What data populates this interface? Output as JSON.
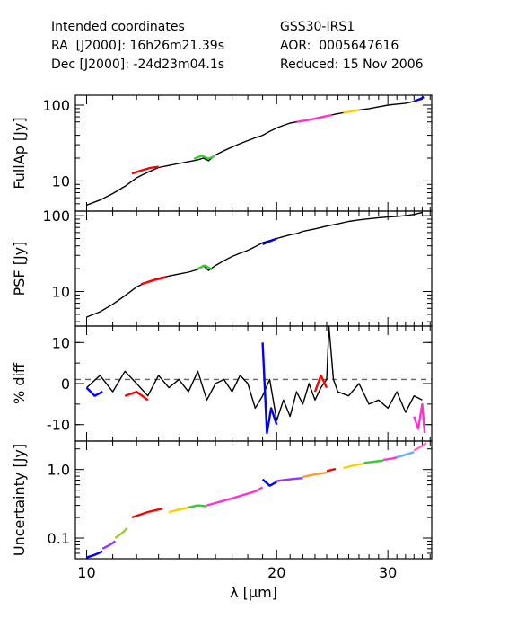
{
  "header": {
    "left": [
      "Intended coordinates",
      "RA  [J2000]: 16h26m21.39s",
      "Dec [J2000]: -24d23m04.1s"
    ],
    "right": [
      "GSS30-IRS1",
      "AOR:  0005647616",
      "Reduced: 15 Nov 2006"
    ]
  },
  "chart_data": [
    {
      "type": "line",
      "panel": "FullAp",
      "ylabel": "FullAp [Jy]",
      "yscale": "log",
      "ylim": [
        4,
        135
      ],
      "yticks": [
        10,
        100
      ],
      "ytick_labels": [
        "10",
        "100"
      ],
      "series": [
        {
          "color": "#000000",
          "x": [
            10,
            10.5,
            11,
            11.5,
            12,
            12.5,
            13,
            13.5,
            14,
            14.5,
            15,
            15.3,
            15.6,
            16,
            16.5,
            17,
            17.5,
            18,
            18.5,
            19,
            19.5,
            20,
            20.5,
            21,
            21.5,
            22,
            22.5,
            23,
            23.5,
            24,
            25,
            26,
            27,
            28,
            29,
            30,
            31,
            32,
            33,
            34
          ],
          "y": [
            4.8,
            5.6,
            6.8,
            8.5,
            11,
            13,
            15,
            16,
            17,
            18,
            19,
            20,
            18.5,
            22,
            25,
            28,
            31,
            34,
            37,
            40,
            45,
            50,
            54,
            58,
            60,
            62,
            64,
            66,
            68,
            72,
            77,
            82,
            86,
            90,
            95,
            100,
            103,
            106,
            112,
            120
          ]
        },
        {
          "color": "#ff0000",
          "x": [
            11.8,
            12.2,
            12.6,
            13.0
          ],
          "y": [
            12.5,
            13.7,
            14.8,
            15.4
          ]
        },
        {
          "color": "#33cc33",
          "x": [
            14.8,
            15.2,
            15.6,
            16.0
          ],
          "y": [
            19.5,
            21.5,
            19.6,
            21.5
          ]
        },
        {
          "color": "#ff33cc",
          "x": [
            21.5,
            22.5,
            23.5,
            24.5
          ],
          "y": [
            60,
            64,
            69,
            74
          ]
        },
        {
          "color": "#ffcc00",
          "x": [
            25.5,
            26.5,
            27.0
          ],
          "y": [
            79,
            84,
            86
          ]
        },
        {
          "color": "#0000ff",
          "x": [
            33.0,
            33.8,
            34.2
          ],
          "y": [
            112,
            121,
            128
          ]
        }
      ]
    },
    {
      "type": "line",
      "panel": "PSF",
      "ylabel": "PSF [Jy]",
      "yscale": "log",
      "ylim": [
        3.5,
        115
      ],
      "yticks": [
        10,
        100
      ],
      "ytick_labels": [
        "10",
        "100"
      ],
      "series": [
        {
          "color": "#000000",
          "x": [
            10,
            10.5,
            11,
            11.5,
            12,
            12.5,
            13,
            13.5,
            14,
            14.5,
            15,
            15.3,
            15.6,
            16,
            16.5,
            17,
            17.5,
            18,
            18.5,
            19,
            19.5,
            20,
            20.5,
            21,
            21.5,
            22,
            23,
            24,
            25,
            26,
            27,
            28,
            29,
            30,
            31,
            32,
            33,
            34
          ],
          "y": [
            4.6,
            5.4,
            6.8,
            8.8,
            11.5,
            13.5,
            15,
            16,
            17,
            18,
            19.5,
            22,
            19,
            22,
            25.5,
            29,
            32,
            35,
            39,
            44,
            47,
            50,
            53,
            56,
            58,
            62,
            67,
            73,
            78,
            84,
            88,
            91,
            94,
            96,
            98,
            100,
            104,
            110
          ]
        },
        {
          "color": "#0000ff",
          "x": [
            19.0,
            19.5,
            20.0
          ],
          "y": [
            42,
            46,
            50
          ]
        },
        {
          "color": "#33cc33",
          "x": [
            15.0,
            15.4,
            15.8
          ],
          "y": [
            20,
            22,
            19.5
          ]
        },
        {
          "color": "#ff0000",
          "x": [
            12.2,
            12.8,
            13.4
          ],
          "y": [
            12.5,
            14.2,
            15.5
          ]
        }
      ]
    },
    {
      "type": "line",
      "panel": "% diff",
      "ylabel": "% diff",
      "yscale": "linear",
      "ylim": [
        -14,
        14
      ],
      "yticks": [
        -10,
        0,
        10
      ],
      "ytick_labels": [
        "-10",
        "0",
        "10"
      ],
      "reference_line": 1,
      "series": [
        {
          "color": "#000000",
          "x": [
            10,
            10.5,
            11,
            11.5,
            12,
            12.5,
            13,
            13.5,
            14,
            14.5,
            15,
            15.5,
            16,
            16.5,
            17,
            17.5,
            18,
            18.5,
            19,
            19.5,
            20,
            20.5,
            21,
            21.5,
            22,
            22.5,
            23,
            23.5,
            24,
            24.2,
            24.6,
            25,
            26,
            27,
            28,
            29,
            30,
            31,
            32,
            33,
            34
          ],
          "y": [
            -1,
            2,
            -2,
            3,
            0,
            -3,
            2,
            -1,
            1,
            -2,
            3,
            -4,
            0,
            1,
            -2,
            2,
            0,
            -6,
            -3,
            1,
            -9,
            -4,
            -8,
            -2,
            -5,
            0,
            -4,
            -1,
            1,
            14,
            1,
            -2,
            -3,
            0,
            -5,
            -4,
            -6,
            -2,
            -7,
            -3,
            -4
          ]
        },
        {
          "color": "#0000ff",
          "x": [
            10.0,
            10.3,
            10.6
          ],
          "y": [
            -1,
            -3,
            -2
          ]
        },
        {
          "color": "#ff0000",
          "x": [
            11.5,
            12.0,
            12.5
          ],
          "y": [
            -3,
            -2,
            -4
          ]
        },
        {
          "color": "#0000ff",
          "x": [
            19.0,
            19.3,
            19.6,
            20.0
          ],
          "y": [
            10,
            -12,
            -6,
            -10
          ]
        },
        {
          "color": "#ff0000",
          "x": [
            23.0,
            23.5,
            24.0
          ],
          "y": [
            -2,
            2,
            -1
          ]
        },
        {
          "color": "#ff33cc",
          "x": [
            33.0,
            33.5,
            34.0,
            34.3
          ],
          "y": [
            -8,
            -11,
            -5,
            -12
          ]
        }
      ]
    },
    {
      "type": "line",
      "panel": "Uncertainty",
      "ylabel": "Uncertainty [Jy]",
      "yscale": "log",
      "xscale": "log",
      "xlabel": "λ [μm]",
      "xlim": [
        9.6,
        35.2
      ],
      "xticks": [
        10,
        20,
        30
      ],
      "xtick_labels": [
        "10",
        "20",
        "30"
      ],
      "ylim": [
        0.05,
        2.6
      ],
      "yticks": [
        0.1,
        1.0
      ],
      "ytick_labels": [
        "0.1",
        "1.0"
      ],
      "series": [
        {
          "color": "#0000ff",
          "x": [
            10.0,
            10.3,
            10.6
          ],
          "y": [
            0.052,
            0.057,
            0.064
          ]
        },
        {
          "color": "#9933ff",
          "x": [
            10.6,
            10.9,
            11.1
          ],
          "y": [
            0.07,
            0.08,
            0.09
          ]
        },
        {
          "color": "#99cc33",
          "x": [
            11.1,
            11.4,
            11.6
          ],
          "y": [
            0.1,
            0.12,
            0.14
          ]
        },
        {
          "color": "#ff0000",
          "x": [
            11.8,
            12.5,
            13.2
          ],
          "y": [
            0.2,
            0.24,
            0.27
          ]
        },
        {
          "color": "#ffcc00",
          "x": [
            13.5,
            14.0,
            14.5
          ],
          "y": [
            0.24,
            0.26,
            0.28
          ]
        },
        {
          "color": "#33cc33",
          "x": [
            14.5,
            15.0,
            15.5
          ],
          "y": [
            0.28,
            0.3,
            0.29
          ]
        },
        {
          "color": "#ff33cc",
          "x": [
            15.5,
            17.0,
            18.5,
            19.0
          ],
          "y": [
            0.3,
            0.38,
            0.48,
            0.55
          ]
        },
        {
          "color": "#0000ff",
          "x": [
            19.0,
            19.5,
            20.0
          ],
          "y": [
            0.72,
            0.58,
            0.66
          ]
        },
        {
          "color": "#9933ff",
          "x": [
            20.0,
            21.0,
            22.0
          ],
          "y": [
            0.68,
            0.72,
            0.75
          ]
        },
        {
          "color": "#ff9933",
          "x": [
            22.0,
            23.0,
            24.0
          ],
          "y": [
            0.78,
            0.85,
            0.9
          ]
        },
        {
          "color": "#ff0000",
          "x": [
            24.0,
            24.8
          ],
          "y": [
            0.95,
            1.02
          ]
        },
        {
          "color": "#ffcc00",
          "x": [
            25.5,
            26.5,
            27.5
          ],
          "y": [
            1.05,
            1.15,
            1.22
          ]
        },
        {
          "color": "#33cc33",
          "x": [
            27.5,
            28.5,
            29.5
          ],
          "y": [
            1.25,
            1.3,
            1.35
          ]
        },
        {
          "color": "#ff33cc",
          "x": [
            29.5,
            30.5,
            31.0
          ],
          "y": [
            1.38,
            1.45,
            1.5
          ]
        },
        {
          "color": "#66aaff",
          "x": [
            31.0,
            32.0,
            33.0
          ],
          "y": [
            1.5,
            1.65,
            1.8
          ]
        },
        {
          "color": "#ff66cc",
          "x": [
            33.0,
            34.0,
            34.5
          ],
          "y": [
            1.9,
            2.2,
            2.45
          ]
        }
      ]
    }
  ]
}
